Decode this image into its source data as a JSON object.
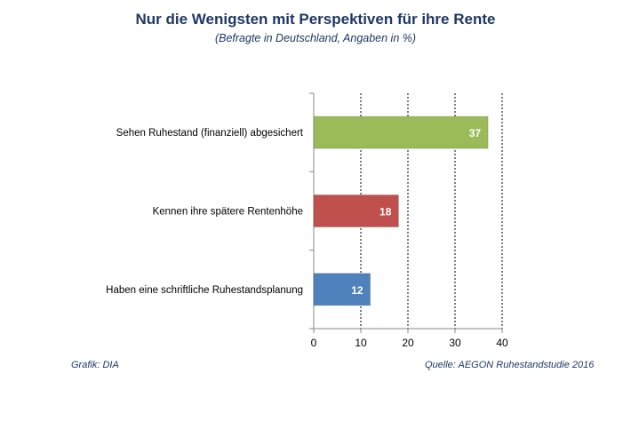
{
  "header": {
    "title": "Nur die Wenigsten mit Perspektiven für ihre Rente",
    "subtitle": "(Befragte in Deutschland, Angaben in %)"
  },
  "footer": {
    "left": "Grafik: DIA",
    "right": "Quelle: AEGON Ruhestandstudie 2016"
  },
  "chart_data": {
    "type": "bar",
    "orientation": "horizontal",
    "categories": [
      "Sehen Ruhestand (finanziell) abgesichert",
      "Kennen ihre spätere Rentenhöhe",
      "Haben eine schriftliche Ruhestandsplanung"
    ],
    "values": [
      37,
      18,
      12
    ],
    "value_labels": [
      "37",
      "18",
      "12"
    ],
    "colors": [
      "#9bbb59",
      "#c0504d",
      "#4f81bd"
    ],
    "xlim": [
      0,
      40
    ],
    "xticks": [
      0,
      10,
      20,
      30,
      40
    ],
    "xtick_labels": [
      "0",
      "10",
      "20",
      "30",
      "40"
    ],
    "grid": "vertical dashed",
    "legend": "none"
  }
}
